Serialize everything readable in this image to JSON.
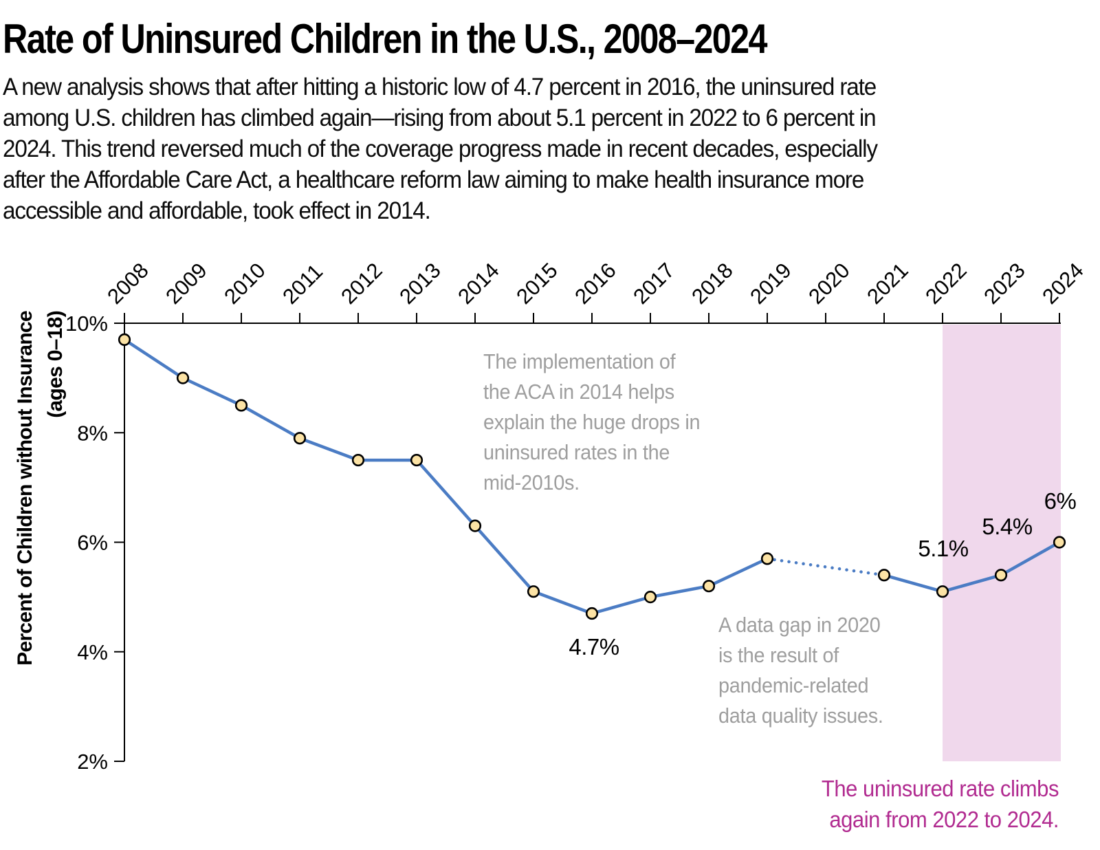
{
  "page": {
    "title": "Rate of Uninsured Children in the U.S., 2008–2024",
    "subtitle_lines": [
      "A new analysis shows that after hitting a historic low of 4.7 percent in 2016, the uninsured rate",
      "among U.S. children has climbed again—rising from about 5.1 percent in 2022 to 6 percent in",
      "2024. This trend reversed much of the coverage progress made in recent decades, especially",
      "after the Affordable Care Act, a healthcare reform law aiming to make health insurance more",
      "accessible and affordable, took effect in 2014."
    ]
  },
  "chart_data": {
    "type": "line",
    "title": "Rate of Uninsured Children in the U.S., 2008–2024",
    "x": [
      2008,
      2009,
      2010,
      2011,
      2012,
      2013,
      2014,
      2015,
      2016,
      2017,
      2018,
      2019,
      2020,
      2021,
      2022,
      2023,
      2024
    ],
    "series": [
      {
        "name": "Percent of children without insurance",
        "values": [
          9.7,
          9.0,
          8.5,
          7.9,
          7.5,
          7.5,
          6.3,
          5.1,
          4.7,
          5.0,
          5.2,
          5.7,
          null,
          5.4,
          5.1,
          5.4,
          6.0
        ]
      }
    ],
    "ylabel_lines": [
      "Percent of Children without Insurance",
      "(ages 0–18)"
    ],
    "yticks": [
      10,
      8,
      6,
      4,
      2
    ],
    "ytick_labels": [
      "10%",
      "8%",
      "6%",
      "4%",
      "2%"
    ],
    "ylim": [
      2,
      10
    ],
    "grid": false,
    "x_axis_position": "top",
    "gap_segment": {
      "from": 2019,
      "to": 2021,
      "style": "dotted",
      "reason": "no 2020 data"
    },
    "highlight_band": {
      "from": 2022,
      "to": 2024,
      "color": "#f0d8ec"
    },
    "point_labels": [
      {
        "year": 2016,
        "text": "4.7%"
      },
      {
        "year": 2022,
        "text": "5.1%"
      },
      {
        "year": 2023,
        "text": "5.4%"
      },
      {
        "year": 2024,
        "text": "6%"
      }
    ],
    "colors": {
      "line": "#4b7cc4",
      "marker_fill": "#fce3a5",
      "marker_stroke": "#000000",
      "axis": "#000000",
      "annotation_gray": "#9e9e9e",
      "caption_magenta": "#b12b90"
    }
  },
  "annotations": {
    "aca": {
      "lines": [
        "The implementation of",
        "the ACA in 2014 helps",
        "explain the huge drops in",
        "uninsured rates in the",
        "mid-2010s."
      ]
    },
    "gap": {
      "lines": [
        "A data gap in 2020",
        "is the result of",
        "pandemic-related",
        "data quality issues."
      ]
    },
    "band_caption": {
      "lines": [
        "The uninsured rate climbs",
        "again from 2022 to 2024."
      ],
      "color": "#b12b90"
    }
  }
}
